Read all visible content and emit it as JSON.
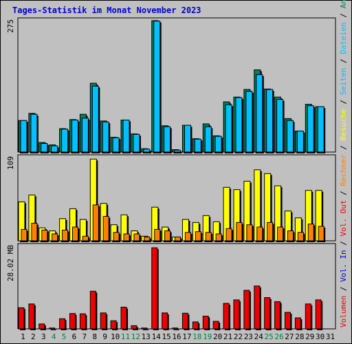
{
  "title": "Tages-Statistik im Monat November 2023",
  "colors": {
    "background": "#c0c0c0",
    "frame": "#000000",
    "title": "#0000cc",
    "anfragen": "#008060",
    "dateien": "#00c0ff",
    "seiten": "#00c0ff",
    "besuche": "#ffff00",
    "rechner": "#ff8000",
    "volumen": "#ee0000",
    "weekday_label": "#000000",
    "weekend_label": "#008040"
  },
  "chart_data": [
    {
      "type": "bar",
      "panel": "top",
      "ymax_label": "275",
      "ylim": [
        0,
        275
      ],
      "x": [
        1,
        2,
        3,
        4,
        5,
        6,
        7,
        8,
        9,
        10,
        11,
        12,
        13,
        14,
        15,
        16,
        17,
        18,
        19,
        20,
        21,
        22,
        23,
        24,
        25,
        26,
        27,
        28,
        29,
        30
      ],
      "series": [
        {
          "name": "Anfragen",
          "values": [
            66,
            81,
            20,
            15,
            49,
            68,
            79,
            144,
            65,
            31,
            67,
            38,
            7,
            275,
            55,
            5,
            56,
            28,
            59,
            34,
            105,
            115,
            131,
            172,
            132,
            115,
            70,
            44,
            100,
            95
          ]
        },
        {
          "name": "Dateien",
          "values": [
            66,
            79,
            18,
            13,
            48,
            67,
            71,
            138,
            63,
            30,
            67,
            37,
            6,
            274,
            53,
            4,
            56,
            27,
            53,
            33,
            99,
            114,
            127,
            162,
            131,
            110,
            66,
            44,
            97,
            95
          ]
        },
        {
          "name": "Seiten",
          "values": [
            0,
            0,
            0,
            0,
            0,
            0,
            0,
            0,
            0,
            0,
            0,
            0,
            0,
            0,
            0,
            0,
            0,
            0,
            0,
            0,
            0,
            0,
            0,
            0,
            0,
            0,
            0,
            0,
            0,
            0
          ]
        }
      ]
    },
    {
      "type": "bar",
      "panel": "middle",
      "ymax_label": "109",
      "ylim": [
        0,
        109
      ],
      "x": [
        1,
        2,
        3,
        4,
        5,
        6,
        7,
        8,
        9,
        10,
        11,
        12,
        13,
        14,
        15,
        16,
        17,
        18,
        19,
        20,
        21,
        22,
        23,
        24,
        25,
        26,
        27,
        28,
        29,
        30
      ],
      "series": [
        {
          "name": "Besuche",
          "values": [
            51,
            60,
            17,
            13,
            29,
            42,
            28,
            107,
            49,
            21,
            34,
            13,
            6,
            44,
            18,
            5,
            28,
            24,
            33,
            25,
            70,
            67,
            78,
            93,
            88,
            72,
            39,
            30,
            66,
            66
          ]
        },
        {
          "name": "Rechner",
          "values": [
            15,
            23,
            14,
            9,
            14,
            18,
            6,
            47,
            32,
            11,
            9,
            9,
            5,
            15,
            13,
            5,
            11,
            12,
            11,
            9,
            16,
            24,
            21,
            18,
            24,
            18,
            13,
            11,
            22,
            19
          ]
        }
      ]
    },
    {
      "type": "bar",
      "panel": "bottom",
      "ymax_label": "28.02 MB",
      "ylim": [
        0,
        28.02
      ],
      "x": [
        1,
        2,
        3,
        4,
        5,
        6,
        7,
        8,
        9,
        10,
        11,
        12,
        13,
        14,
        15,
        16,
        17,
        18,
        19,
        20,
        21,
        22,
        23,
        24,
        25,
        26,
        27,
        28,
        29,
        30
      ],
      "series": [
        {
          "name": "Volumen",
          "values": [
            7.3,
            8.6,
            1.7,
            0.3,
            3.5,
            5.3,
            5.2,
            13.0,
            5.5,
            2.8,
            7.5,
            1.1,
            0.3,
            28.0,
            5.5,
            0.3,
            5.4,
            2.4,
            4.4,
            2.6,
            8.8,
            10.0,
            13.3,
            14.8,
            10.8,
            9.4,
            5.7,
            3.8,
            8.6,
            10.0
          ]
        }
      ]
    }
  ],
  "x_labels": [
    "1",
    "2",
    "3",
    "4",
    "5",
    "6",
    "7",
    "8",
    "9",
    "10",
    "11",
    "12",
    "13",
    "14",
    "15",
    "16",
    "17",
    "18",
    "19",
    "20",
    "21",
    "22",
    "23",
    "24",
    "25",
    "26",
    "27",
    "28",
    "29",
    "30",
    "31"
  ],
  "weekend_days": [
    4,
    5,
    11,
    12,
    18,
    19,
    25,
    26
  ],
  "side_legend": {
    "top": [
      {
        "text": "Anfragen",
        "color_key": "anfragen"
      },
      {
        "text": " / ",
        "color_key": "frame"
      },
      {
        "text": "Dateien",
        "color_key": "dateien"
      },
      {
        "text": " / ",
        "color_key": "frame"
      },
      {
        "text": "Seiten",
        "color_key": "seiten"
      },
      {
        "text": " / ",
        "color_key": "frame"
      },
      {
        "text": "Besuche",
        "color_key": "besuche"
      },
      {
        "text": " / ",
        "color_key": "frame"
      },
      {
        "text": "Rechner",
        "color_key": "rechner"
      },
      {
        "text": " / ",
        "color_key": "frame"
      },
      {
        "text": "Vol. Out",
        "color_key": "volumen"
      },
      {
        "text": " / ",
        "color_key": "frame"
      },
      {
        "text": "Vol. In",
        "color_key": "title"
      },
      {
        "text": " / ",
        "color_key": "frame"
      },
      {
        "text": "Volumen",
        "color_key": "volumen"
      }
    ]
  }
}
